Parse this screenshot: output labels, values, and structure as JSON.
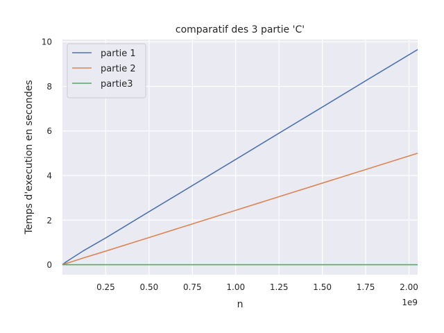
{
  "chart_data": {
    "type": "line",
    "title": "comparatif des 3 partie 'C'",
    "xlabel": "n",
    "ylabel": "Temps d'execution en secondes",
    "x_offset_text": "1e9",
    "xlim": [
      0.0,
      2.05
    ],
    "ylim": [
      -0.45,
      10.1
    ],
    "x_ticks": [
      0.25,
      0.5,
      0.75,
      1.0,
      1.25,
      1.5,
      1.75,
      2.0
    ],
    "x_tick_labels": [
      "0.25",
      "0.50",
      "0.75",
      "1.00",
      "1.25",
      "1.50",
      "1.75",
      "2.00"
    ],
    "y_ticks": [
      0,
      2,
      4,
      6,
      8,
      10
    ],
    "y_tick_labels": [
      "0",
      "2",
      "4",
      "6",
      "8",
      "10"
    ],
    "grid": true,
    "legend_position": "top-left",
    "x": [
      0.0,
      0.02,
      0.06,
      0.12,
      0.25,
      0.5,
      0.75,
      1.0,
      1.25,
      1.5,
      1.75,
      2.05
    ],
    "series": [
      {
        "name": "partie 1",
        "color": "#4c72b0",
        "values": [
          0.0,
          0.12,
          0.32,
          0.62,
          1.2,
          2.38,
          3.55,
          4.72,
          5.9,
          7.07,
          8.25,
          9.65
        ]
      },
      {
        "name": "partie 2",
        "color": "#dd8452",
        "values": [
          0.0,
          0.05,
          0.15,
          0.3,
          0.61,
          1.22,
          1.83,
          2.44,
          3.05,
          3.66,
          4.27,
          5.0
        ]
      },
      {
        "name": "partie3",
        "color": "#55a868",
        "values": [
          0.0,
          0.0,
          0.0,
          0.0,
          0.0,
          0.0,
          0.0,
          0.0,
          0.0,
          0.0,
          0.0,
          0.0
        ]
      }
    ]
  }
}
